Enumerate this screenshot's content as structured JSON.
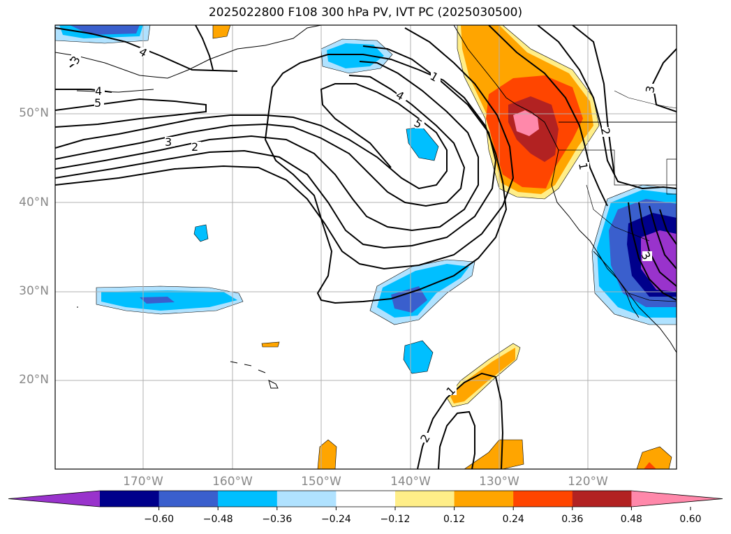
{
  "title": "2025022800 F108 300 hPa PV, IVT PC (2025030500)",
  "map": {
    "projection": "PlateCarree",
    "extent": {
      "lon_min": -180,
      "lon_max": -110,
      "lat_min": 10,
      "lat_max": 60
    },
    "grid": true,
    "lat_labels": [
      "50°N",
      "40°N",
      "30°N",
      "20°N"
    ],
    "lon_labels": [
      "170°W",
      "160°W",
      "150°W",
      "140°W",
      "130°W",
      "120°W"
    ]
  },
  "colorbar": {
    "extend": "both",
    "tick_labels": [
      "−0.60",
      "−0.48",
      "−0.36",
      "−0.24",
      "−0.12",
      "0.12",
      "0.24",
      "0.36",
      "0.48",
      "0.60"
    ],
    "colors": [
      "#9933cc",
      "#00008b",
      "#3a5fcd",
      "#00bfff",
      "#b0e2ff",
      "#ffffff",
      "#ffee88",
      "#ffa500",
      "#ff4500",
      "#b22222",
      "#ff88aa"
    ]
  },
  "pv_contour_labels": [
    "1",
    "2",
    "3",
    "4",
    "5"
  ]
}
